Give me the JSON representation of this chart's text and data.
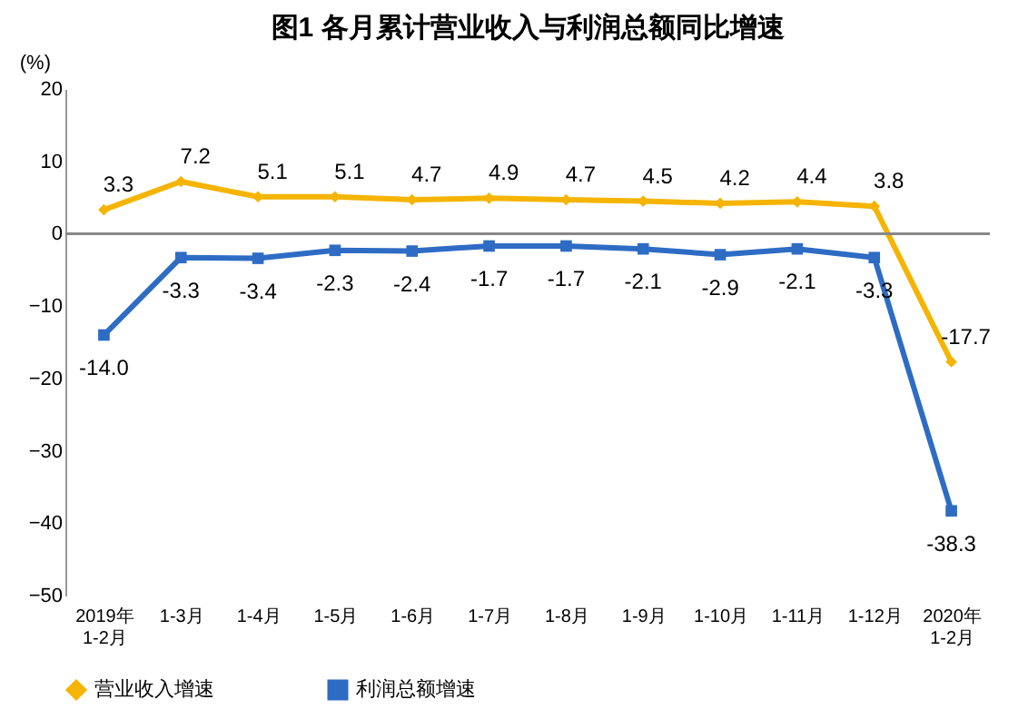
{
  "chart_data": {
    "type": "line",
    "title": "图1  各月累计营业收入与利润总额同比增速",
    "ylabel": "(%)",
    "categories": [
      "2019年\n1-2月",
      "1-3月",
      "1-4月",
      "1-5月",
      "1-6月",
      "1-7月",
      "1-8月",
      "1-9月",
      "1-10月",
      "1-11月",
      "1-12月",
      "2020年\n1-2月"
    ],
    "series": [
      {
        "name": "营业收入增速",
        "color": "#f5b400",
        "marker": "diamond",
        "values": [
          3.3,
          7.2,
          5.1,
          5.1,
          4.7,
          4.9,
          4.7,
          4.5,
          4.2,
          4.4,
          3.8,
          -17.7
        ],
        "value_labels": [
          "3.3",
          "7.2",
          "5.1",
          "5.1",
          "4.7",
          "4.9",
          "4.7",
          "4.5",
          "4.2",
          "4.4",
          "3.8",
          "-17.7"
        ]
      },
      {
        "name": "利润总额增速",
        "color": "#2e6cc4",
        "marker": "square",
        "values": [
          -14.0,
          -3.3,
          -3.4,
          -2.3,
          -2.4,
          -1.7,
          -1.7,
          -2.1,
          -2.9,
          -2.1,
          -3.3,
          -38.3
        ],
        "value_labels": [
          "-14.0",
          "-3.3",
          "-3.4",
          "-2.3",
          "-2.4",
          "-1.7",
          "-1.7",
          "-2.1",
          "-2.9",
          "-2.1",
          "-3.3",
          "-38.3"
        ]
      }
    ],
    "ylim": [
      -50,
      20
    ],
    "yticks": [
      -50,
      -40,
      -30,
      -20,
      -10,
      0,
      10,
      20
    ],
    "ref_lines": [
      {
        "axis": "y",
        "value": 0
      }
    ],
    "legend": "bottom",
    "line_style": "solid"
  }
}
